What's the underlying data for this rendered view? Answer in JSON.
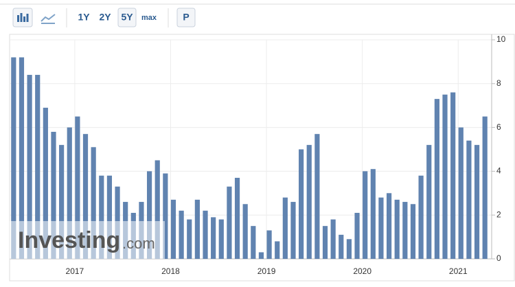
{
  "toolbar": {
    "ranges": [
      "1Y",
      "2Y",
      "5Y",
      "max"
    ],
    "selected": "5Y",
    "print": "P"
  },
  "watermark": {
    "name": "Investing",
    "domain": ".com"
  },
  "chart_data": {
    "type": "bar",
    "color": "#6083b0",
    "categories": [
      null,
      null,
      null,
      null,
      null,
      null,
      null,
      null,
      "2017",
      null,
      null,
      null,
      null,
      null,
      null,
      null,
      null,
      null,
      null,
      null,
      "2018",
      null,
      null,
      null,
      null,
      null,
      null,
      null,
      null,
      null,
      null,
      null,
      "2019",
      null,
      null,
      null,
      null,
      null,
      null,
      null,
      null,
      null,
      null,
      null,
      "2020",
      null,
      null,
      null,
      null,
      null,
      null,
      null,
      null,
      null,
      null,
      null,
      "2021",
      null,
      null,
      null
    ],
    "values": [
      9.2,
      9.2,
      8.4,
      8.4,
      6.9,
      5.8,
      5.2,
      6.0,
      6.5,
      5.7,
      5.1,
      3.8,
      3.8,
      3.3,
      2.6,
      2.1,
      2.6,
      4.0,
      4.5,
      3.9,
      2.7,
      2.2,
      1.8,
      2.7,
      2.2,
      1.9,
      1.8,
      3.3,
      3.7,
      2.5,
      1.5,
      0.3,
      1.3,
      0.8,
      2.8,
      2.6,
      5.0,
      5.2,
      5.7,
      1.5,
      1.8,
      1.1,
      0.9,
      2.1,
      4.0,
      4.1,
      2.8,
      3.0,
      2.7,
      2.6,
      2.5,
      3.8,
      5.2,
      7.3,
      7.5,
      7.6,
      6.0,
      5.4,
      5.2,
      6.5
    ],
    "ylim": [
      0,
      10
    ],
    "yticks": [
      0,
      2,
      4,
      6,
      8,
      10
    ],
    "grid": true
  }
}
